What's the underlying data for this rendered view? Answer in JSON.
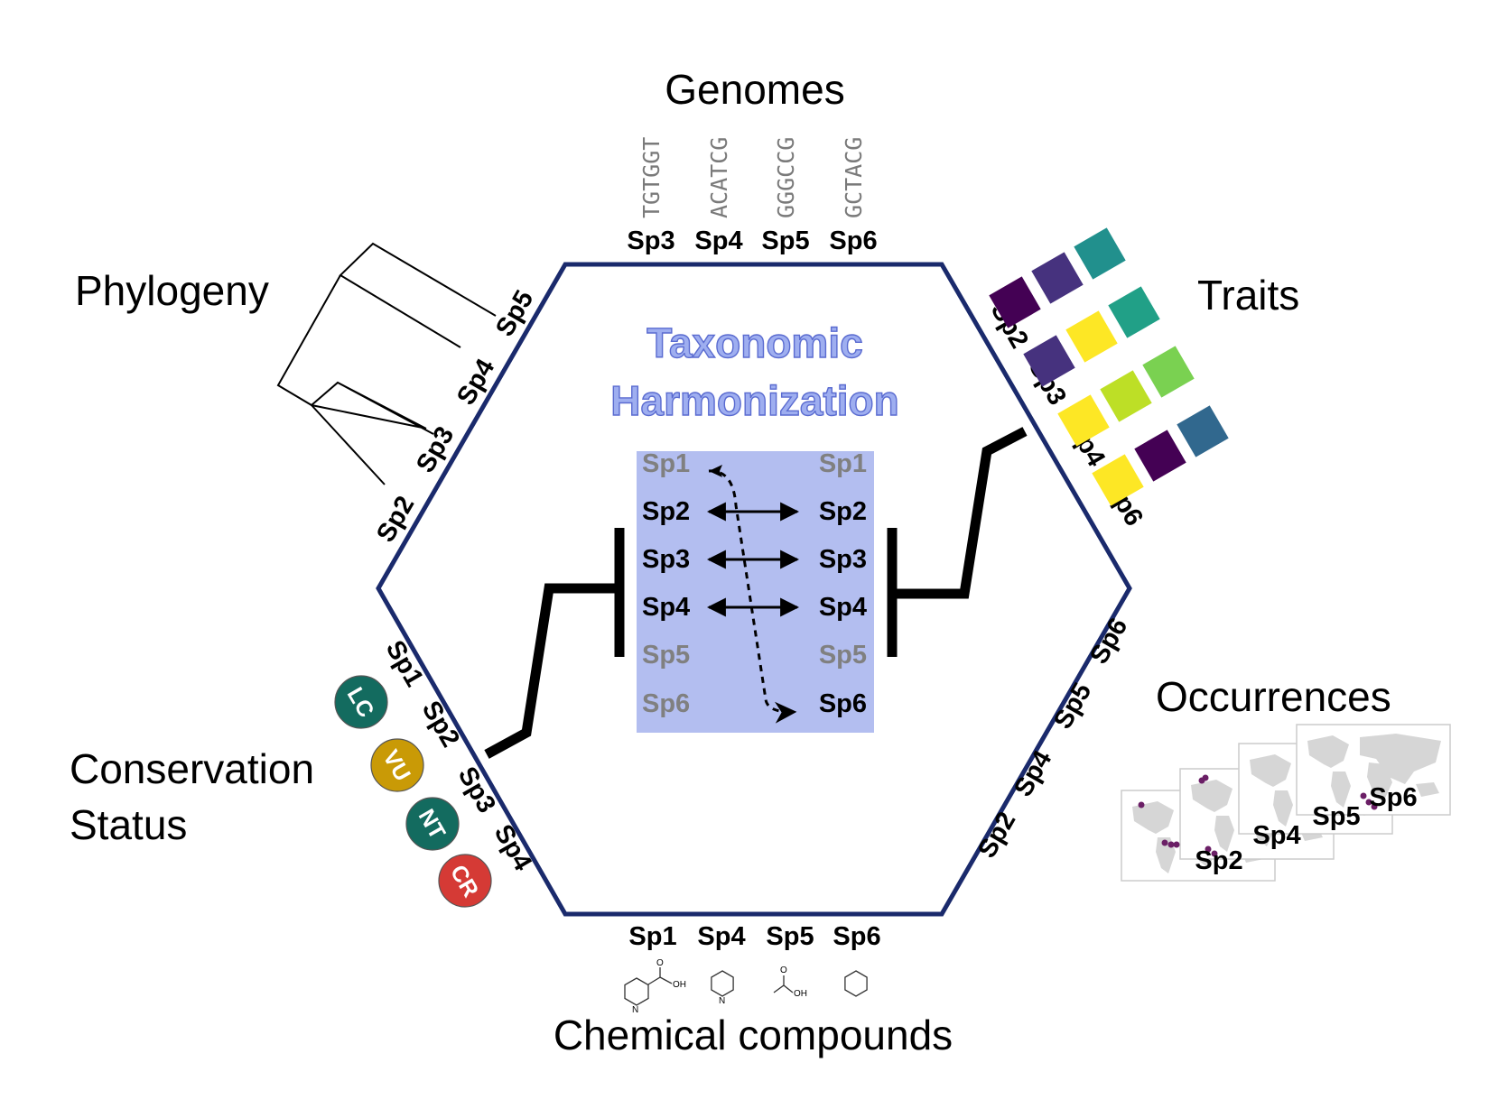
{
  "center": {
    "title_line1": "Taxonomic",
    "title_line2": "Harmonization",
    "left_species": [
      "Sp1",
      "Sp2",
      "Sp3",
      "Sp4",
      "Sp5",
      "Sp6"
    ],
    "right_species": [
      "Sp1",
      "Sp2",
      "Sp3",
      "Sp4",
      "Sp5",
      "Sp6"
    ],
    "left_active": [
      false,
      true,
      true,
      true,
      false,
      false
    ],
    "right_active": [
      false,
      true,
      true,
      true,
      false,
      true
    ]
  },
  "genomes": {
    "title": "Genomes",
    "species": [
      "Sp3",
      "Sp4",
      "Sp5",
      "Sp6"
    ],
    "sequences": [
      "TGTGGT",
      "ACATCG",
      "GGGCCG",
      "GCTACG"
    ]
  },
  "phylogeny": {
    "title": "Phylogeny",
    "species": [
      "Sp2",
      "Sp3",
      "Sp4",
      "Sp5"
    ]
  },
  "traits": {
    "title": "Traits",
    "species": [
      "Sp2",
      "Sp3",
      "Sp4",
      "Sp6"
    ],
    "colors": [
      [
        "#440154",
        "#46327e",
        "#21908d"
      ],
      [
        "#46327e",
        "#fde725",
        "#21a087"
      ],
      [
        "#fde725",
        "#bddf26",
        "#7ad151"
      ],
      [
        "#fde725",
        "#440154",
        "#31688e"
      ]
    ]
  },
  "occurrences": {
    "title": "Occurrences",
    "species": [
      "Sp2",
      "Sp4",
      "Sp5",
      "Sp6"
    ]
  },
  "chemical": {
    "title": "Chemical compounds",
    "species": [
      "Sp1",
      "Sp4",
      "Sp5",
      "Sp6"
    ],
    "atom_labels": [
      "O",
      "OH",
      "N",
      "N",
      "O",
      "OH"
    ]
  },
  "conservation": {
    "title_line1": "Conservation",
    "title_line2": "Status",
    "species": [
      "Sp1",
      "Sp2",
      "Sp3",
      "Sp4"
    ],
    "badges": [
      {
        "code": "LC",
        "color": "#136b5f"
      },
      {
        "code": "VU",
        "color": "#c99a06"
      },
      {
        "code": "NT",
        "color": "#136b5f"
      },
      {
        "code": "CR",
        "color": "#d53a35"
      }
    ]
  },
  "colors": {
    "hexagon": "#1a2a6c",
    "center_box": "#b3bef0"
  }
}
